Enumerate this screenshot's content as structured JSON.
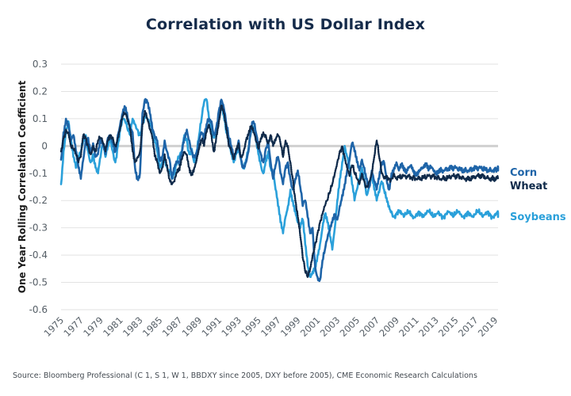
{
  "chart_data": {
    "type": "line",
    "title": "Correlation with US Dollar Index",
    "xlabel": "",
    "ylabel": "One Year Rolling Correlation Coefficient",
    "ylim": [
      -0.6,
      0.3
    ],
    "xlim": [
      1975,
      2019.3
    ],
    "yticks": [
      0.3,
      0.2,
      0.1,
      0,
      -0.1,
      -0.2,
      -0.3,
      -0.4,
      -0.5,
      -0.6
    ],
    "ytick_labels": [
      "0.3",
      "0.2",
      "0.1",
      "0",
      "-0.1",
      "-0.2",
      "-0.3",
      "-0.4",
      "-0.5",
      "-0.6"
    ],
    "xticks": [
      1975,
      1977,
      1979,
      1981,
      1983,
      1985,
      1987,
      1989,
      1991,
      1993,
      1995,
      1997,
      1999,
      2001,
      2003,
      2005,
      2007,
      2009,
      2011,
      2013,
      2015,
      2017,
      2019
    ],
    "xtick_labels": [
      "1975",
      "1977",
      "1979",
      "1981",
      "1983",
      "1985",
      "1987",
      "1989",
      "1991",
      "1993",
      "1995",
      "1997",
      "1999",
      "2001",
      "2003",
      "2005",
      "2007",
      "2009",
      "2011",
      "2013",
      "2015",
      "2017",
      "2019"
    ],
    "grid": true,
    "legend_position": "right",
    "x_step_years": 0.25,
    "x_start": 1975,
    "series": [
      {
        "name": "Corn",
        "color": "#1e64a8",
        "style": "solid",
        "values": [
          -0.05,
          0.05,
          0.1,
          0.08,
          0.02,
          0.04,
          -0.02,
          -0.08,
          -0.12,
          -0.05,
          0.02,
          0.03,
          -0.02,
          0.01,
          -0.04,
          -0.03,
          0.02,
          0.0,
          -0.03,
          0.03,
          0.04,
          0.02,
          -0.02,
          0.04,
          0.08,
          0.12,
          0.14,
          0.1,
          0.06,
          0.05,
          -0.08,
          -0.12,
          -0.1,
          0.12,
          0.17,
          0.16,
          0.12,
          0.06,
          0.03,
          0.02,
          -0.05,
          -0.04,
          0.02,
          -0.02,
          -0.05,
          -0.12,
          -0.08,
          -0.06,
          -0.07,
          -0.02,
          0.03,
          0.06,
          0.02,
          -0.02,
          -0.04,
          -0.03,
          0.02,
          0.05,
          0.02,
          0.08,
          0.1,
          0.09,
          0.04,
          0.07,
          0.13,
          0.17,
          0.14,
          0.08,
          0.03,
          0.0,
          -0.04,
          -0.02,
          0.02,
          -0.05,
          -0.08,
          -0.06,
          -0.02,
          0.06,
          0.09,
          0.05,
          0.0,
          -0.03,
          -0.06,
          -0.01,
          0.02,
          -0.06,
          -0.12,
          -0.07,
          -0.04,
          -0.1,
          -0.14,
          -0.08,
          -0.06,
          -0.12,
          -0.16,
          -0.12,
          -0.09,
          -0.15,
          -0.22,
          -0.2,
          -0.26,
          -0.32,
          -0.3,
          -0.44,
          -0.48,
          -0.49,
          -0.42,
          -0.38,
          -0.34,
          -0.31,
          -0.28,
          -0.25,
          -0.27,
          -0.22,
          -0.18,
          -0.14,
          -0.09,
          -0.05,
          0.01,
          -0.02,
          -0.06,
          -0.09,
          -0.05,
          -0.08,
          -0.12,
          -0.15,
          -0.09,
          -0.13,
          -0.16,
          -0.12,
          -0.07,
          -0.06,
          -0.12,
          -0.16,
          -0.1,
          -0.08,
          -0.06,
          -0.09,
          -0.07,
          -0.09,
          -0.1,
          -0.08,
          -0.07,
          -0.09,
          -0.1,
          -0.09,
          -0.08,
          -0.08,
          -0.07,
          -0.09,
          -0.08,
          -0.09,
          -0.1,
          -0.09,
          -0.08,
          -0.09,
          -0.08,
          -0.09,
          -0.08,
          -0.09,
          -0.08,
          -0.09,
          -0.08,
          -0.09,
          -0.08,
          -0.09,
          -0.08,
          -0.09,
          -0.08,
          -0.09,
          -0.08,
          -0.09,
          -0.08,
          -0.09,
          -0.08,
          -0.09,
          -0.08,
          -0.09,
          -0.08,
          -0.09,
          -0.08
        ]
      },
      {
        "name": "Wheat",
        "color": "#0f2a4a",
        "style": "dotted",
        "values": [
          -0.02,
          0.03,
          0.06,
          0.05,
          0.0,
          -0.01,
          -0.03,
          -0.06,
          -0.04,
          0.04,
          0.03,
          0.0,
          -0.03,
          0.0,
          -0.02,
          0.02,
          0.03,
          0.01,
          -0.02,
          0.02,
          0.04,
          0.03,
          0.0,
          0.03,
          0.07,
          0.11,
          0.12,
          0.09,
          0.06,
          -0.02,
          -0.06,
          -0.04,
          -0.02,
          0.08,
          0.13,
          0.1,
          0.06,
          0.03,
          -0.04,
          -0.06,
          -0.1,
          -0.08,
          -0.03,
          -0.07,
          -0.12,
          -0.14,
          -0.13,
          -0.1,
          -0.09,
          -0.05,
          -0.02,
          -0.03,
          -0.08,
          -0.1,
          -0.08,
          -0.05,
          -0.01,
          0.02,
          0.0,
          0.05,
          0.08,
          0.04,
          -0.02,
          0.04,
          0.09,
          0.15,
          0.12,
          0.06,
          0.0,
          -0.02,
          -0.05,
          -0.01,
          0.01,
          -0.04,
          -0.02,
          0.02,
          0.04,
          0.07,
          0.05,
          0.02,
          -0.01,
          0.03,
          0.05,
          0.04,
          0.01,
          0.04,
          0.0,
          0.02,
          0.04,
          0.01,
          -0.04,
          0.02,
          0.0,
          -0.06,
          -0.12,
          -0.2,
          -0.26,
          -0.33,
          -0.41,
          -0.46,
          -0.48,
          -0.45,
          -0.4,
          -0.36,
          -0.32,
          -0.28,
          -0.25,
          -0.22,
          -0.2,
          -0.17,
          -0.14,
          -0.1,
          -0.06,
          -0.02,
          0.0,
          -0.04,
          -0.08,
          -0.11,
          -0.07,
          -0.1,
          -0.12,
          -0.14,
          -0.1,
          -0.13,
          -0.15,
          -0.13,
          -0.1,
          -0.04,
          0.02,
          -0.04,
          -0.1,
          -0.12,
          -0.11,
          -0.12,
          -0.12,
          -0.1,
          -0.12,
          -0.11,
          -0.12,
          -0.11,
          -0.12,
          -0.11,
          -0.12,
          -0.11,
          -0.12,
          -0.11,
          -0.12,
          -0.11,
          -0.12,
          -0.11,
          -0.12,
          -0.11,
          -0.12,
          -0.11,
          -0.12,
          -0.11,
          -0.12,
          -0.11,
          -0.12,
          -0.11,
          -0.12,
          -0.11,
          -0.12,
          -0.11,
          -0.12,
          -0.11,
          -0.12,
          -0.11,
          -0.12,
          -0.11,
          -0.12,
          -0.11,
          -0.12,
          -0.11,
          -0.12,
          -0.11,
          -0.12,
          -0.11,
          -0.12
        ]
      },
      {
        "name": "Soybeans",
        "color": "#2aa0da",
        "style": "solid",
        "values": [
          -0.14,
          -0.02,
          0.06,
          0.09,
          0.02,
          -0.04,
          -0.08,
          -0.05,
          -0.02,
          0.02,
          0.04,
          -0.02,
          -0.06,
          -0.03,
          -0.08,
          -0.1,
          -0.04,
          0.01,
          -0.04,
          0.0,
          0.03,
          -0.02,
          -0.06,
          0.0,
          0.06,
          0.1,
          0.09,
          0.06,
          0.04,
          0.1,
          0.08,
          0.06,
          0.04,
          0.08,
          0.11,
          0.1,
          0.08,
          0.06,
          0.02,
          -0.02,
          -0.08,
          -0.06,
          -0.04,
          -0.08,
          -0.09,
          -0.12,
          -0.1,
          -0.06,
          -0.04,
          -0.02,
          0.04,
          0.02,
          -0.03,
          -0.01,
          -0.06,
          -0.02,
          0.04,
          0.1,
          0.16,
          0.17,
          0.1,
          0.06,
          0.03,
          0.06,
          0.1,
          0.15,
          0.11,
          0.05,
          0.01,
          -0.03,
          -0.06,
          -0.03,
          0.0,
          -0.05,
          -0.08,
          -0.05,
          -0.01,
          0.05,
          0.07,
          0.02,
          -0.03,
          -0.07,
          -0.1,
          -0.05,
          -0.02,
          -0.08,
          -0.1,
          -0.16,
          -0.22,
          -0.28,
          -0.32,
          -0.26,
          -0.22,
          -0.16,
          -0.2,
          -0.24,
          -0.28,
          -0.3,
          -0.27,
          -0.36,
          -0.44,
          -0.48,
          -0.46,
          -0.44,
          -0.4,
          -0.36,
          -0.3,
          -0.25,
          -0.28,
          -0.33,
          -0.38,
          -0.3,
          -0.2,
          -0.12,
          -0.06,
          0.0,
          -0.04,
          -0.08,
          -0.14,
          -0.2,
          -0.16,
          -0.12,
          -0.08,
          -0.12,
          -0.18,
          -0.14,
          -0.1,
          -0.16,
          -0.2,
          -0.17,
          -0.13,
          -0.16,
          -0.19,
          -0.22,
          -0.24,
          -0.26,
          -0.25,
          -0.24,
          -0.25,
          -0.26,
          -0.25,
          -0.24,
          -0.25,
          -0.26,
          -0.25,
          -0.24,
          -0.25,
          -0.26,
          -0.25,
          -0.24,
          -0.25,
          -0.26,
          -0.25,
          -0.24,
          -0.25,
          -0.26,
          -0.25,
          -0.24,
          -0.25,
          -0.26,
          -0.25,
          -0.24,
          -0.25,
          -0.26,
          -0.25,
          -0.24,
          -0.25,
          -0.26,
          -0.25,
          -0.24,
          -0.25,
          -0.26,
          -0.25,
          -0.24,
          -0.25,
          -0.26,
          -0.25,
          -0.24,
          -0.25,
          -0.26
        ]
      }
    ],
    "source_note": "Source: Bloomberg Professional (C 1, S 1, W 1, BBDXY since 2005, DXY before 2005), CME Economic Research Calculations"
  }
}
